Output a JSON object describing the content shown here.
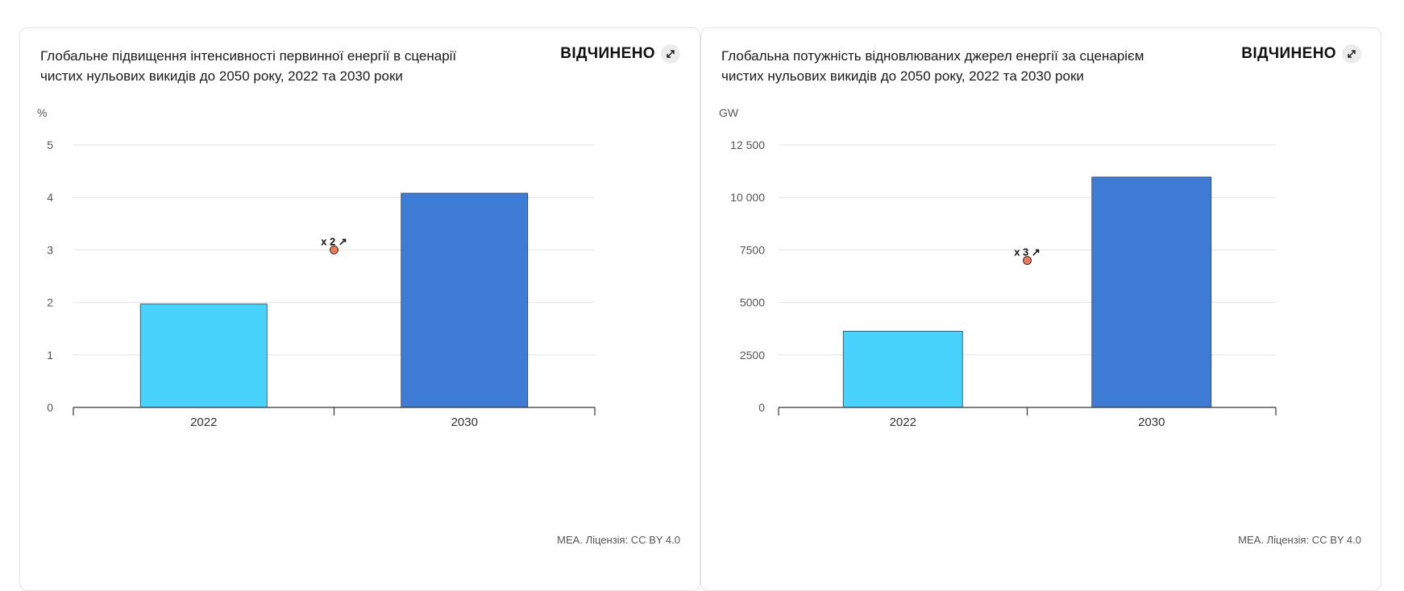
{
  "open_label": "ВІДЧИНЕНО",
  "source": "МЕА. Ліцензія: CC BY 4.0",
  "colors": {
    "bar_2022": "#48d3fc",
    "bar_2030": "#3e7bd5",
    "marker": "#f07a55"
  },
  "icons": {
    "expand": "expand-arrows-icon"
  },
  "chart_data": [
    {
      "type": "bar",
      "title": "Глобальне підвищення інтенсивності первинної енергії в сценарії чистих нульових викидів до 2050 року, 2022 та 2030 роки",
      "unit": "%",
      "categories": [
        "2022",
        "2030"
      ],
      "values": [
        1.97,
        4.08
      ],
      "ylim": [
        0,
        5
      ],
      "yticks": [
        0,
        1,
        2,
        3,
        4,
        5
      ],
      "ytick_labels": [
        "0",
        "1",
        "2",
        "3",
        "4",
        "5"
      ],
      "grid": true,
      "annotation": {
        "text": "x 2",
        "arrow": "↗",
        "y": 3.0
      }
    },
    {
      "type": "bar",
      "title": "Глобальна потужність відновлюваних джерел енергії за сценарієм чистих нульових викидів до 2050 року, 2022 та 2030 роки",
      "unit": "GW",
      "categories": [
        "2022",
        "2030"
      ],
      "values": [
        3630,
        10970
      ],
      "ylim": [
        0,
        12500
      ],
      "yticks": [
        0,
        2500,
        5000,
        7500,
        10000,
        12500
      ],
      "ytick_labels": [
        "0",
        "2500",
        "5000",
        "7500",
        "10 000",
        "12 500"
      ],
      "grid": true,
      "annotation": {
        "text": "x 3",
        "arrow": "↗",
        "y": 7000
      }
    }
  ]
}
